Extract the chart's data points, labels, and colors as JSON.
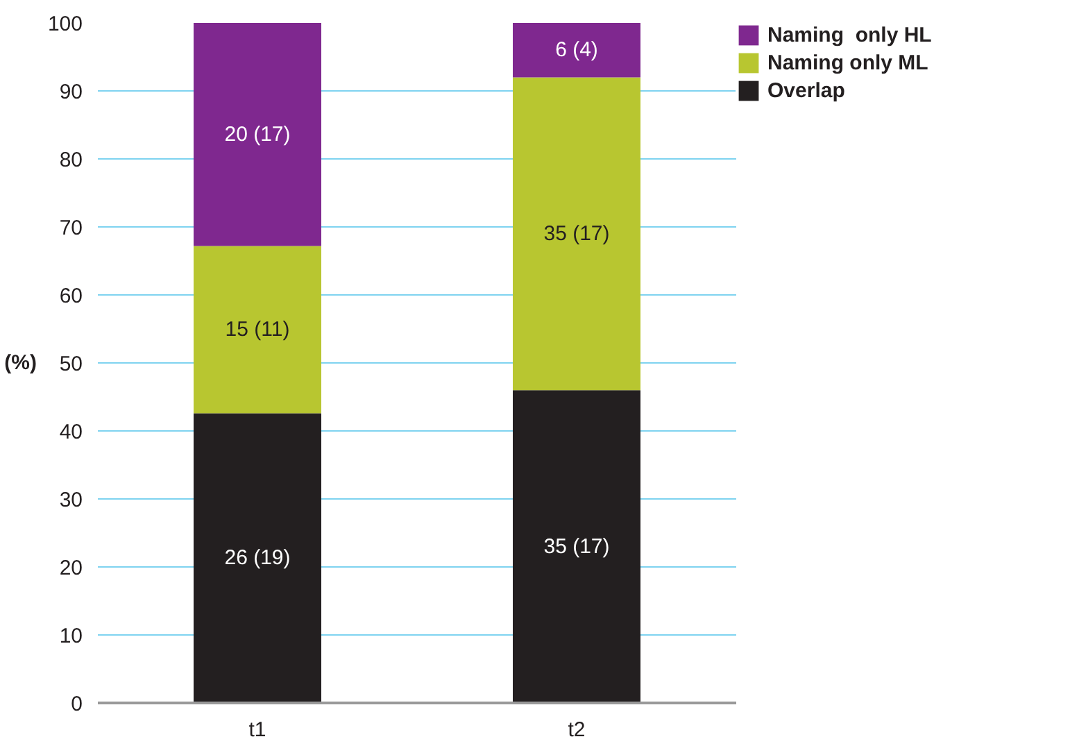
{
  "chart_data": {
    "type": "bar",
    "stacked": true,
    "ylabel": "(%)",
    "categories": [
      "t1",
      "t2"
    ],
    "series": [
      {
        "name": "Overlap",
        "color": "#231f20",
        "values": [
          42.6,
          46.0
        ]
      },
      {
        "name": "Naming only ML",
        "color": "#b8c630",
        "values": [
          24.6,
          46.0
        ]
      },
      {
        "name": "Naming  only HL",
        "color": "#7f288f",
        "values": [
          32.8,
          8.0
        ]
      }
    ],
    "annotations": [
      "26 (19)",
      "35 (17)",
      "15 (11)",
      "35 (17)",
      "20 (17)",
      "6 (4)"
    ],
    "ylim": [
      0,
      100
    ],
    "yticks": [
      0,
      10,
      20,
      30,
      40,
      50,
      60,
      70,
      80,
      90,
      100
    ],
    "grid": "y",
    "legend": "top right"
  }
}
